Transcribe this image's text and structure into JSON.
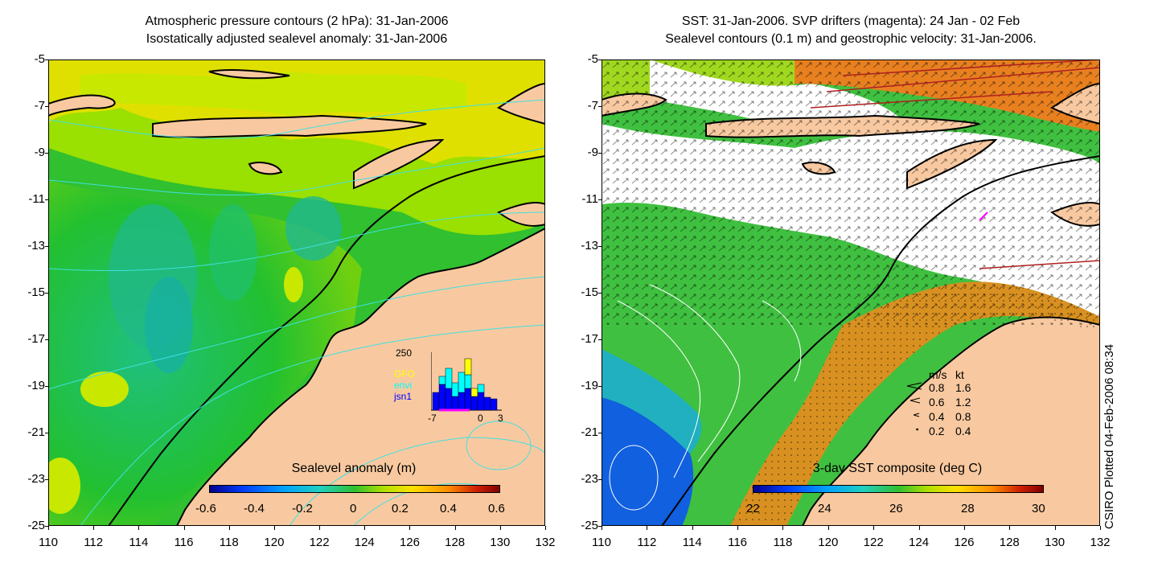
{
  "left_panel": {
    "title_line1": "Atmospheric pressure contours (2 hPa): 31-Jan-2006",
    "title_line2": "Isostatically adjusted sealevel anomaly: 31-Jan-2006",
    "colorbar_title": "Sealevel anomaly (m)",
    "colorbar_ticks": [
      "-0.6",
      "-0.4",
      "-0.2",
      "0",
      "0.2",
      "0.4",
      "0.6"
    ],
    "inset": {
      "ymax_label": "250",
      "legend": [
        {
          "label": "GFO",
          "color": "#ffff00"
        },
        {
          "label": "envi",
          "color": "#00ffff"
        },
        {
          "label": "jsn1",
          "color": "#0000ff"
        }
      ],
      "x_labels": [
        "-7",
        "0",
        "3"
      ]
    }
  },
  "right_panel": {
    "title_line1": "SST: 31-Jan-2006. SVP drifters (magenta): 24 Jan - 02 Feb",
    "title_line2": "Sealevel contours (0.1 m) and geostrophic velocity: 31-Jan-2006.",
    "colorbar_title": "3-day SST composite (deg C)",
    "colorbar_ticks": [
      "22",
      "24",
      "26",
      "28",
      "30"
    ],
    "velocity_legend": {
      "header_ms": "m/s",
      "header_kt": "kt",
      "rows": [
        {
          "ms": "0.8",
          "kt": "1.6"
        },
        {
          "ms": "0.6",
          "kt": "1.2"
        },
        {
          "ms": "0.4",
          "kt": "0.8"
        },
        {
          "ms": "0.2",
          "kt": "0.4"
        }
      ]
    }
  },
  "axes": {
    "lat_labels": [
      "-5",
      "-7",
      "-9",
      "-11",
      "-13",
      "-15",
      "-17",
      "-19",
      "-21",
      "-23",
      "-25"
    ],
    "lon_labels": [
      "110",
      "112",
      "114",
      "116",
      "118",
      "120",
      "122",
      "124",
      "126",
      "128",
      "130",
      "132"
    ]
  },
  "credit": "CSIRO Plotted 04-Feb-2006 08:34",
  "colors": {
    "land": "#f8c9a0",
    "coast": "#000000",
    "pressure_contour": "#40e0e0",
    "drifter": "#ff00ff"
  }
}
